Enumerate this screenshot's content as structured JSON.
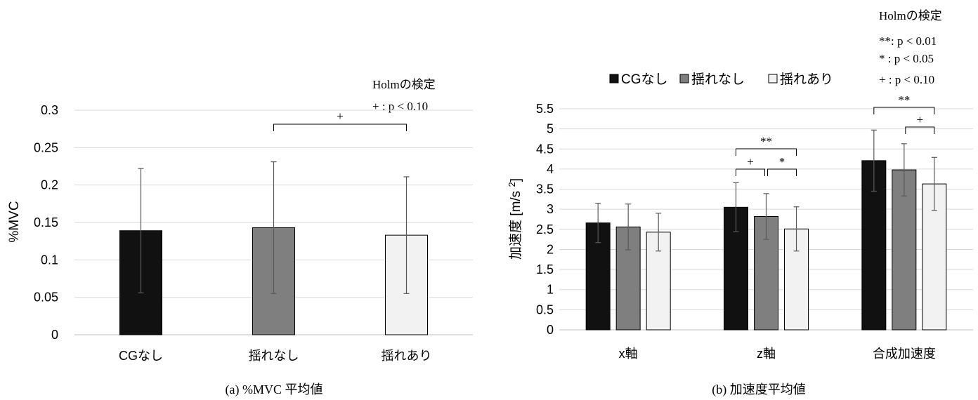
{
  "chart_data": [
    {
      "type": "bar",
      "caption": "(a) %MVC 平均値",
      "ylabel": "%MVC",
      "ylim": [
        0,
        0.3
      ],
      "yticks": [
        "0",
        "0.05",
        "0.1",
        "0.15",
        "0.2",
        "0.25",
        "0.3"
      ],
      "grid": true,
      "categories": [
        "CGなし",
        "揺れなし",
        "揺れあり"
      ],
      "values": [
        0.139,
        0.143,
        0.133
      ],
      "errors": [
        0.083,
        0.088,
        0.078
      ],
      "colors": [
        "#111111",
        "#7f7f7f",
        "#f2f2f2"
      ],
      "note": [
        "Holmの検定",
        "+ : p < 0.10"
      ],
      "significance": [
        {
          "from": 1,
          "to": 2,
          "label": "+"
        }
      ]
    },
    {
      "type": "bar",
      "caption": "(b) 加速度平均値",
      "ylabel": "加速度 [m/s²]",
      "ylim": [
        0,
        5.5
      ],
      "yticks": [
        "0",
        "0.5",
        "1",
        "1.5",
        "2",
        "2.5",
        "3",
        "3.5",
        "4",
        "4.5",
        "5",
        "5.5"
      ],
      "grid": true,
      "categories": [
        "x軸",
        "z軸",
        "合成加速度"
      ],
      "series": [
        {
          "name": "CGなし",
          "color": "#111111",
          "values": [
            2.66,
            3.05,
            4.21
          ],
          "errors": [
            0.49,
            0.61,
            0.76
          ]
        },
        {
          "name": "揺れなし",
          "color": "#7f7f7f",
          "values": [
            2.56,
            2.82,
            3.98
          ],
          "errors": [
            0.57,
            0.57,
            0.65
          ]
        },
        {
          "name": "揺れあり",
          "color": "#f2f2f2",
          "values": [
            2.43,
            2.51,
            3.63
          ],
          "errors": [
            0.47,
            0.55,
            0.66
          ]
        }
      ],
      "legend_position": "top",
      "note": [
        "Holmの検定",
        "**: p < 0.01",
        "* : p < 0.05",
        "+ : p < 0.10"
      ],
      "significance": [
        {
          "category": 1,
          "from": 0,
          "to": 2,
          "label": "**"
        },
        {
          "category": 1,
          "from": 0,
          "to": 1,
          "label": "+"
        },
        {
          "category": 1,
          "from": 1,
          "to": 2,
          "label": "*"
        },
        {
          "category": 2,
          "from": 0,
          "to": 2,
          "label": "**"
        },
        {
          "category": 2,
          "from": 1,
          "to": 2,
          "label": "+"
        }
      ]
    }
  ]
}
